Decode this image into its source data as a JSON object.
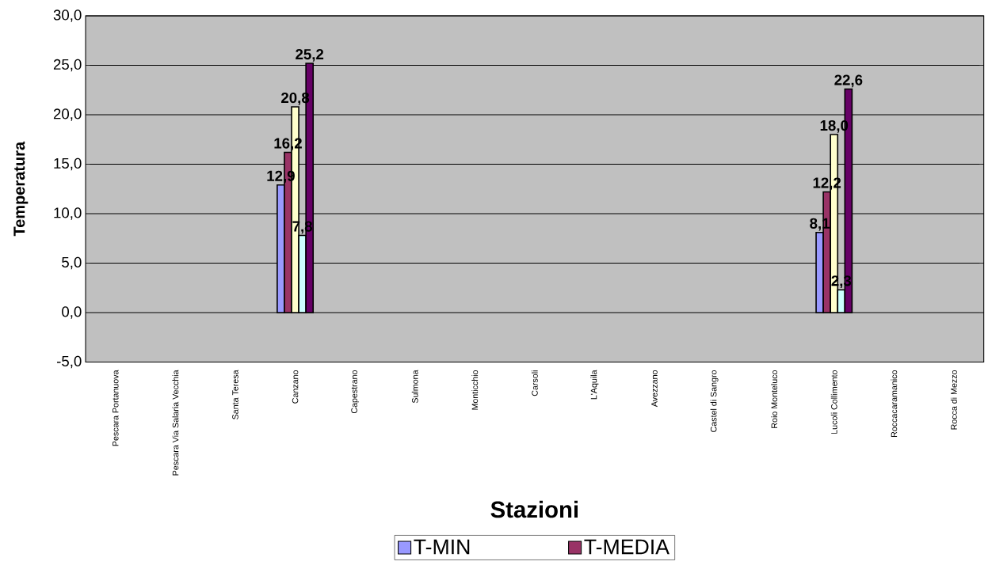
{
  "chart_data": {
    "type": "bar",
    "xlabel": "Stazioni",
    "ylabel": "Temperatura",
    "categories": [
      "Pescara Portanuova",
      "Pescara Via Salaria Vecchia",
      "Santa Teresa",
      "Canzano",
      "Capestrano",
      "Sulmona",
      "Monticchio",
      "Carsoli",
      "L'Aquila",
      "Avezzano",
      "Castel di Sangro",
      "Roio Monteluco",
      "Lucoli Collimento",
      "Roccacaramanico",
      "Rocca di Mezzo"
    ],
    "series": [
      {
        "name": "T-MIN",
        "color": "#9999ff",
        "values": [
          null,
          null,
          null,
          12.9,
          null,
          null,
          null,
          null,
          null,
          null,
          null,
          null,
          8.1,
          null,
          null
        ],
        "value_labels": [
          null,
          null,
          null,
          "12,9",
          null,
          null,
          null,
          null,
          null,
          null,
          null,
          null,
          "8,1",
          null,
          null
        ]
      },
      {
        "name": "T-MEDIA",
        "color": "#993366",
        "values": [
          null,
          null,
          null,
          16.2,
          null,
          null,
          null,
          null,
          null,
          null,
          null,
          null,
          12.2,
          null,
          null
        ],
        "value_labels": [
          null,
          null,
          null,
          "16,2",
          null,
          null,
          null,
          null,
          null,
          null,
          null,
          null,
          "12,2",
          null,
          null
        ]
      },
      {
        "color": "#ffffcc",
        "values": [
          null,
          null,
          null,
          20.8,
          null,
          null,
          null,
          null,
          null,
          null,
          null,
          null,
          18.0,
          null,
          null
        ],
        "value_labels": [
          null,
          null,
          null,
          "20,8",
          null,
          null,
          null,
          null,
          null,
          null,
          null,
          null,
          "18,0",
          null,
          null
        ]
      },
      {
        "color": "#ccffff",
        "values": [
          null,
          null,
          null,
          7.8,
          null,
          null,
          null,
          null,
          null,
          null,
          null,
          null,
          2.3,
          null,
          null
        ],
        "value_labels": [
          null,
          null,
          null,
          "7,8",
          null,
          null,
          null,
          null,
          null,
          null,
          null,
          null,
          "2,3",
          null,
          null
        ]
      },
      {
        "color": "#660066",
        "values": [
          null,
          null,
          null,
          25.2,
          null,
          null,
          null,
          null,
          null,
          null,
          null,
          null,
          22.6,
          null,
          null
        ],
        "value_labels": [
          null,
          null,
          null,
          "25,2",
          null,
          null,
          null,
          null,
          null,
          null,
          null,
          null,
          "22,6",
          null,
          null
        ]
      }
    ],
    "ylim": [
      -5,
      30
    ],
    "yticks": [
      {
        "value": -5,
        "label": "-5,0"
      },
      {
        "value": 0,
        "label": "0,0"
      },
      {
        "value": 5,
        "label": "5,0"
      },
      {
        "value": 10,
        "label": "10,0"
      },
      {
        "value": 15,
        "label": "15,0"
      },
      {
        "value": 20,
        "label": "20,0"
      },
      {
        "value": 25,
        "label": "25,0"
      },
      {
        "value": 30,
        "label": "30,0"
      }
    ],
    "grid": "y",
    "legend": "bottom"
  }
}
